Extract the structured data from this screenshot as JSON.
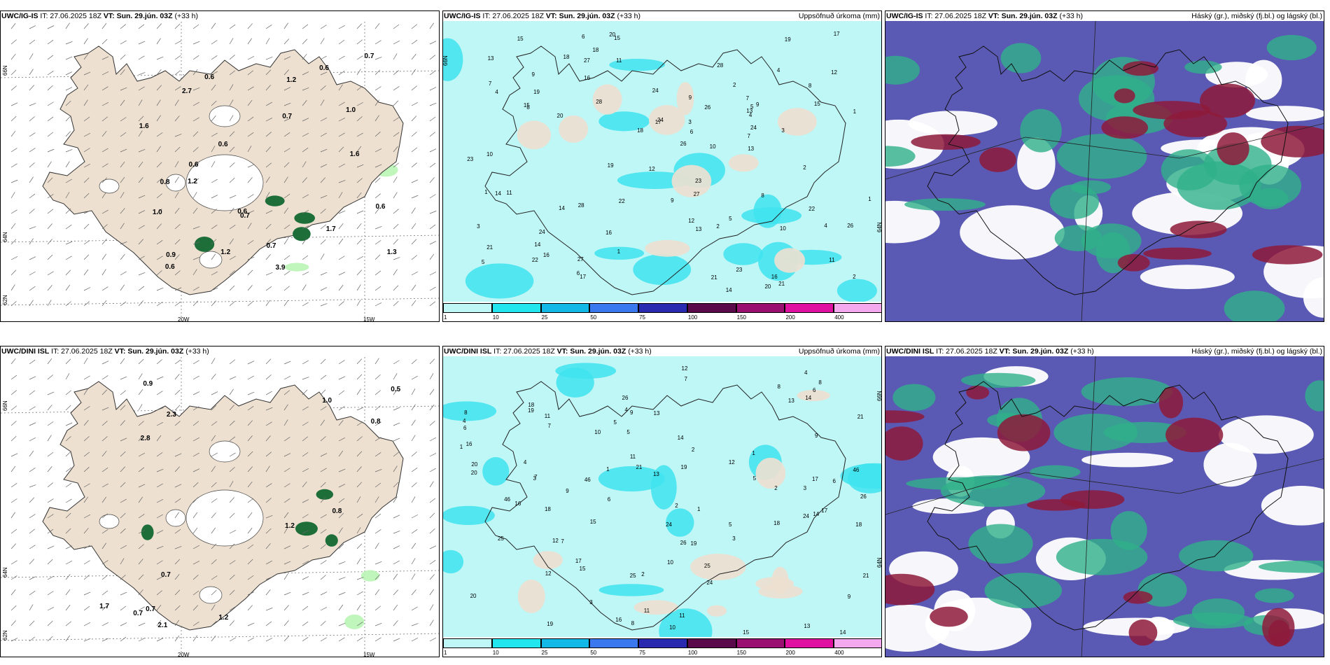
{
  "colors": {
    "land": "#ede0d0",
    "snow": "#ffffff",
    "precip_light": "#b9f5b4",
    "precip_dark": "#1e6e3a",
    "accum_base": "#bff6f6",
    "accum_mid": "#3ee3ee",
    "cloud_blue": "#5a5ab4",
    "cloud_green": "#2fb08a",
    "cloud_red": "#8e1a3a"
  },
  "panels": {
    "p1": {
      "model": "UWC/IG-IS",
      "it": "IT: 27.06.2025 18Z",
      "vt_label": "VT:",
      "vt": "Sun. 29.jún. 03Z",
      "lead": "(+33 h)",
      "right": "",
      "lon_labels": [
        "20W",
        "15W"
      ],
      "lat_labels": [
        "66N",
        "64N",
        "62N"
      ],
      "values": [
        "1.2",
        "0.7",
        "0.6",
        "0.6",
        "0.8",
        "1.0",
        "0.6",
        "0.6",
        "0.6",
        "0.7",
        "0.7",
        "0.6",
        "1.6",
        "1.7",
        "0.7",
        "1.0",
        "3.9",
        "1.2",
        "2.7",
        "0.6",
        "1.2",
        "1.6",
        "0.9",
        "1.3"
      ]
    },
    "p2": {
      "model": "UWC/IG-IS",
      "it": "IT: 27.06.2025 18Z",
      "vt_label": "VT:",
      "vt": "Sun. 29.jún. 03Z",
      "lead": "(+33 h)",
      "right": "Uppsöfnuð úrkoma (mm)",
      "lat_labels": [
        "66N",
        "64N"
      ],
      "colorbar_ticks": [
        "1",
        "10",
        "25",
        "50",
        "75",
        "100",
        "150",
        "200",
        "400"
      ],
      "colorbar_colors": [
        "#bff6f6",
        "#22e6ee",
        "#13b9e6",
        "#3a78f0",
        "#2a2ab0",
        "#5a0a4a",
        "#9a1070",
        "#e010a0",
        "#f4a8ee"
      ],
      "numbers": [
        "1",
        "2",
        "4",
        "24",
        "13",
        "16",
        "14",
        "9",
        "15",
        "18",
        "10",
        "8",
        "6",
        "7",
        "5",
        "12",
        "21",
        "11",
        "19",
        "22",
        "17",
        "3",
        "20",
        "23",
        "26",
        "28",
        "27"
      ]
    },
    "p3": {
      "model": "UWC/IG-IS",
      "it": "IT: 27.06.2025 18Z",
      "vt_label": "VT:",
      "vt": "Sun. 29.jún. 03Z",
      "lead": "(+33 h)",
      "right": "Háský (gr.), miðský (fj.bl.) og lágský (bl.)"
    },
    "p4": {
      "model": "UWC/DINI ISL",
      "it": "IT: 27.06.2025 18Z",
      "vt_label": "VT:",
      "vt": "Sun. 29.jún. 03Z",
      "lead": "(+33 h)",
      "right": "",
      "lon_labels": [
        "20W",
        "15W"
      ],
      "lat_labels": [
        "66N",
        "64N",
        "62N"
      ],
      "values": [
        "0.8",
        "0.7",
        "1.7",
        "0.5",
        "2.1",
        "1.2",
        "2.8",
        "1.2",
        "2.3",
        "1.0",
        "0.9",
        "0.7",
        "0.7",
        "0.8"
      ]
    },
    "p5": {
      "model": "UWC/DINI ISL",
      "it": "IT: 27.06.2025 18Z",
      "vt_label": "VT:",
      "vt": "Sun. 29.jún. 03Z",
      "lead": "(+33 h)",
      "right": "Uppsöfnuð úrkoma (mm)",
      "lat_labels": [
        "66N",
        "64N"
      ],
      "colorbar_ticks": [
        "1",
        "10",
        "25",
        "50",
        "75",
        "100",
        "150",
        "200",
        "400"
      ],
      "colorbar_colors": [
        "#bff6f6",
        "#22e6ee",
        "#13b9e6",
        "#3a78f0",
        "#2a2ab0",
        "#5a0a4a",
        "#9a1070",
        "#e010a0",
        "#f4a8ee"
      ],
      "numbers": [
        "1",
        "2",
        "4",
        "3",
        "19",
        "6",
        "7",
        "12",
        "11",
        "13",
        "8",
        "5",
        "9",
        "14",
        "18",
        "15",
        "24",
        "20",
        "17",
        "16",
        "10",
        "21",
        "25",
        "26",
        "46"
      ]
    },
    "p6": {
      "model": "UWC/DINI ISL",
      "it": "IT: 27.06.2025 18Z",
      "vt_label": "VT:",
      "vt": "Sun. 29.jún. 03Z",
      "lead": "(+33 h)",
      "right": "Háský (gr.), miðský (fj.bl.) og lágský (bl.)"
    }
  }
}
